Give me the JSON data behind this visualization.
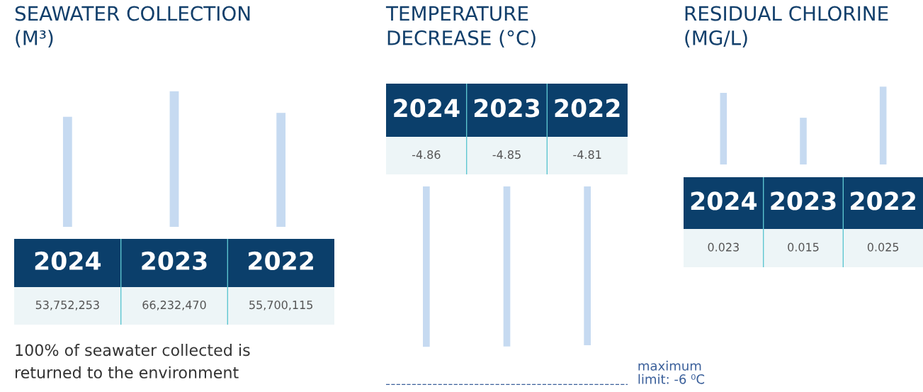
{
  "chart_data": [
    {
      "type": "bar",
      "title": "SEAWATER COLLECTION (M³)",
      "categories": [
        "2024",
        "2023",
        "2022"
      ],
      "values": [
        53752253,
        66232470,
        55700115
      ],
      "value_labels": [
        "53,752,253",
        "66,232,470",
        "55,700,115"
      ],
      "color": "#c6daf1",
      "tick_labels": "x",
      "annotations": [
        "100% of seawater collected is returned to the environment"
      ]
    },
    {
      "type": "bar",
      "title": "TEMPERATURE DECREASE (°C)",
      "categories": [
        "2024",
        "2023",
        "2022"
      ],
      "values": [
        -4.86,
        -4.85,
        -4.81
      ],
      "data_labels": true,
      "color": "#c6daf1",
      "tick_labels": "x",
      "ref_lines": [
        {
          "axis": "y",
          "value": -6,
          "label": "maximum limit: -6 ⁰C",
          "color": "#3a5f9a",
          "line_style": "dashed"
        }
      ]
    },
    {
      "type": "bar",
      "title": "RESIDUAL CHLORINE (MG/L)",
      "categories": [
        "2024",
        "2023",
        "2022"
      ],
      "values": [
        0.023,
        0.015,
        0.025
      ],
      "data_labels": true,
      "color": "#c6daf1",
      "tick_labels": "x"
    }
  ]
}
